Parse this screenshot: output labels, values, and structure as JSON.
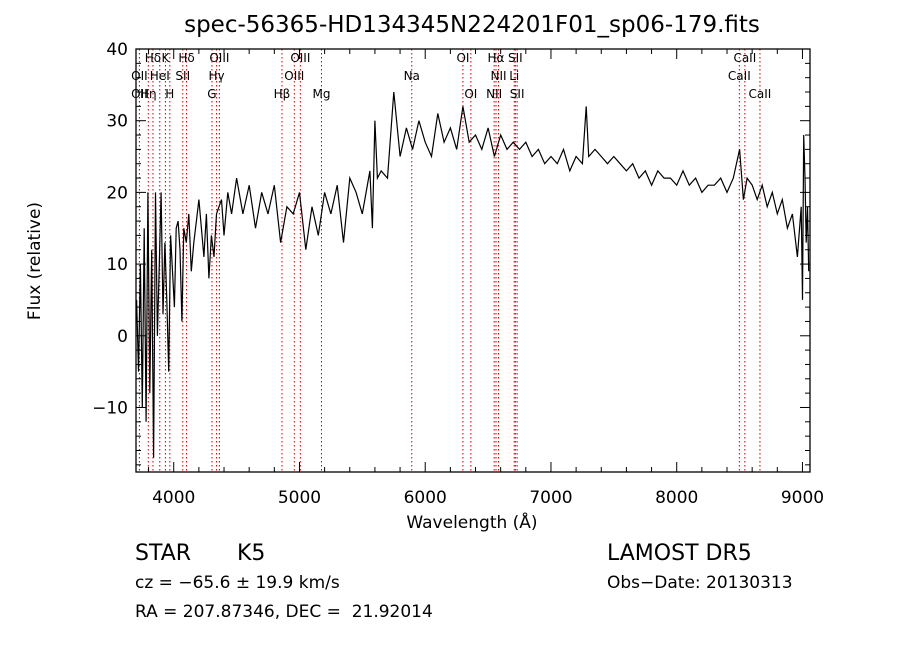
{
  "chart_data": {
    "type": "line",
    "title": "spec-56365-HD134345N224201F01_sp06-179.fits",
    "xlabel": "Wavelength (Å)",
    "ylabel": "Flux (relative)",
    "xlim": [
      3700,
      9060
    ],
    "ylim": [
      -19,
      40
    ],
    "xticks": [
      4000,
      5000,
      6000,
      7000,
      8000,
      9000
    ],
    "yticks": [
      -10,
      0,
      10,
      20,
      30,
      40
    ],
    "grid": false,
    "series": [
      {
        "points": [
          [
            3705,
            5
          ],
          [
            3720,
            -5
          ],
          [
            3735,
            10
          ],
          [
            3750,
            -10
          ],
          [
            3765,
            15
          ],
          [
            3780,
            -12
          ],
          [
            3795,
            20
          ],
          [
            3810,
            -8
          ],
          [
            3825,
            12
          ],
          [
            3840,
            -17
          ],
          [
            3855,
            20
          ],
          [
            3870,
            0
          ],
          [
            3885,
            10
          ],
          [
            3900,
            20
          ],
          [
            3915,
            3
          ],
          [
            3930,
            13
          ],
          [
            3945,
            5
          ],
          [
            3960,
            -5
          ],
          [
            3975,
            14
          ],
          [
            3990,
            9
          ],
          [
            4005,
            4
          ],
          [
            4020,
            15
          ],
          [
            4035,
            16
          ],
          [
            4050,
            12
          ],
          [
            4065,
            2
          ],
          [
            4080,
            15
          ],
          [
            4100,
            13
          ],
          [
            4120,
            17
          ],
          [
            4140,
            9
          ],
          [
            4160,
            13
          ],
          [
            4180,
            16
          ],
          [
            4200,
            19
          ],
          [
            4220,
            15
          ],
          [
            4240,
            11
          ],
          [
            4260,
            17
          ],
          [
            4280,
            8
          ],
          [
            4300,
            14
          ],
          [
            4320,
            11
          ],
          [
            4340,
            17
          ],
          [
            4360,
            18
          ],
          [
            4380,
            19
          ],
          [
            4400,
            14
          ],
          [
            4430,
            20
          ],
          [
            4460,
            17
          ],
          [
            4500,
            22
          ],
          [
            4550,
            17
          ],
          [
            4600,
            21
          ],
          [
            4650,
            15
          ],
          [
            4700,
            20
          ],
          [
            4750,
            17
          ],
          [
            4800,
            21
          ],
          [
            4850,
            13
          ],
          [
            4900,
            18
          ],
          [
            4950,
            17
          ],
          [
            5000,
            20
          ],
          [
            5050,
            12
          ],
          [
            5100,
            18
          ],
          [
            5150,
            14
          ],
          [
            5200,
            20
          ],
          [
            5250,
            17
          ],
          [
            5300,
            21
          ],
          [
            5350,
            13
          ],
          [
            5400,
            22
          ],
          [
            5450,
            20
          ],
          [
            5500,
            17
          ],
          [
            5560,
            23
          ],
          [
            5580,
            15
          ],
          [
            5600,
            30
          ],
          [
            5620,
            22
          ],
          [
            5650,
            23
          ],
          [
            5700,
            22
          ],
          [
            5750,
            34
          ],
          [
            5800,
            25
          ],
          [
            5850,
            29
          ],
          [
            5900,
            26
          ],
          [
            5950,
            30
          ],
          [
            6000,
            27
          ],
          [
            6050,
            25
          ],
          [
            6100,
            31
          ],
          [
            6150,
            27
          ],
          [
            6200,
            29
          ],
          [
            6250,
            26
          ],
          [
            6300,
            32
          ],
          [
            6350,
            27
          ],
          [
            6400,
            28
          ],
          [
            6450,
            26
          ],
          [
            6500,
            29
          ],
          [
            6550,
            25
          ],
          [
            6600,
            28
          ],
          [
            6650,
            26
          ],
          [
            6700,
            27
          ],
          [
            6750,
            26
          ],
          [
            6800,
            27
          ],
          [
            6850,
            25
          ],
          [
            6900,
            26
          ],
          [
            6950,
            24
          ],
          [
            7000,
            25
          ],
          [
            7050,
            24
          ],
          [
            7100,
            26
          ],
          [
            7150,
            23
          ],
          [
            7200,
            25
          ],
          [
            7250,
            24
          ],
          [
            7280,
            32
          ],
          [
            7300,
            25
          ],
          [
            7350,
            26
          ],
          [
            7400,
            25
          ],
          [
            7450,
            24
          ],
          [
            7500,
            25
          ],
          [
            7550,
            24
          ],
          [
            7600,
            23
          ],
          [
            7650,
            24
          ],
          [
            7700,
            22
          ],
          [
            7750,
            23
          ],
          [
            7800,
            21
          ],
          [
            7850,
            23
          ],
          [
            7900,
            22
          ],
          [
            7950,
            22
          ],
          [
            8000,
            21
          ],
          [
            8050,
            23
          ],
          [
            8100,
            21
          ],
          [
            8150,
            22
          ],
          [
            8200,
            20
          ],
          [
            8250,
            21
          ],
          [
            8300,
            21
          ],
          [
            8350,
            22
          ],
          [
            8400,
            20
          ],
          [
            8450,
            22
          ],
          [
            8500,
            26
          ],
          [
            8530,
            19
          ],
          [
            8560,
            22
          ],
          [
            8600,
            21
          ],
          [
            8640,
            19
          ],
          [
            8680,
            21
          ],
          [
            8720,
            18
          ],
          [
            8760,
            20
          ],
          [
            8800,
            17
          ],
          [
            8840,
            19
          ],
          [
            8880,
            15
          ],
          [
            8920,
            17
          ],
          [
            8960,
            11
          ],
          [
            8990,
            18
          ],
          [
            9000,
            5
          ],
          [
            9010,
            28
          ],
          [
            9020,
            22
          ],
          [
            9030,
            13
          ],
          [
            9040,
            18
          ],
          [
            9050,
            9
          ]
        ]
      }
    ],
    "lines": [
      {
        "x": 3727,
        "labels": [
          "OII"
        ]
      },
      {
        "x": 3798,
        "labels": [
          "Hη"
        ]
      },
      {
        "x": 3835,
        "labels": [
          "Hδ"
        ]
      },
      {
        "x": 3889,
        "labels": [
          "HeI"
        ]
      },
      {
        "x": 3934,
        "labels": [
          "K"
        ]
      },
      {
        "x": 3969,
        "labels": [
          "H"
        ]
      },
      {
        "x": 4072,
        "labels": [
          "SII"
        ]
      },
      {
        "x": 4102,
        "labels": [
          "Hδ"
        ]
      },
      {
        "x": 4304,
        "labels": [
          "G"
        ]
      },
      {
        "x": 4341,
        "labels": [
          "Hγ"
        ]
      },
      {
        "x": 4363,
        "labels": [
          "OIII"
        ]
      },
      {
        "x": 4861,
        "labels": [
          "Hβ"
        ]
      },
      {
        "x": 4959,
        "labels": [
          "OIII"
        ]
      },
      {
        "x": 5007,
        "labels": [
          "OIII"
        ]
      },
      {
        "x": 5175,
        "labels": [
          "Mg"
        ]
      },
      {
        "x": 5893,
        "labels": [
          "Na"
        ]
      },
      {
        "x": 6300,
        "labels": [
          "OI"
        ]
      },
      {
        "x": 6363,
        "labels": [
          "OI"
        ]
      },
      {
        "x": 6548,
        "labels": [
          "NII"
        ]
      },
      {
        "x": 6563,
        "labels": [
          "Hα"
        ]
      },
      {
        "x": 6583,
        "labels": [
          "NII"
        ]
      },
      {
        "x": 6708,
        "labels": [
          "Li"
        ]
      },
      {
        "x": 6717,
        "labels": [
          "SII"
        ]
      },
      {
        "x": 6731,
        "labels": [
          "SII"
        ]
      },
      {
        "x": 8498,
        "labels": [
          "CaII"
        ]
      },
      {
        "x": 8542,
        "labels": [
          "CaII"
        ]
      },
      {
        "x": 8662,
        "labels": [
          "CaII"
        ]
      }
    ],
    "line_labels": [
      {
        "text": "Hδ",
        "x": 3835,
        "row": 0
      },
      {
        "text": "K",
        "x": 3934,
        "row": 0
      },
      {
        "text": "Hδ",
        "x": 4102,
        "row": 0
      },
      {
        "text": "OIII",
        "x": 4363,
        "row": 0
      },
      {
        "text": "OIII",
        "x": 5007,
        "row": 0
      },
      {
        "text": "OI",
        "x": 6300,
        "row": 0
      },
      {
        "text": "Hα",
        "x": 6563,
        "row": 0
      },
      {
        "text": "SII",
        "x": 6717,
        "row": 0
      },
      {
        "text": "CaII",
        "x": 8542,
        "row": 0
      },
      {
        "text": "OII",
        "x": 3727,
        "row": 1
      },
      {
        "text": "HeI",
        "x": 3889,
        "row": 1
      },
      {
        "text": "SII",
        "x": 4072,
        "row": 1
      },
      {
        "text": "Hγ",
        "x": 4341,
        "row": 1
      },
      {
        "text": "OIII",
        "x": 4959,
        "row": 1
      },
      {
        "text": "Na",
        "x": 5893,
        "row": 1
      },
      {
        "text": "NII",
        "x": 6583,
        "row": 1
      },
      {
        "text": "Li",
        "x": 6708,
        "row": 1
      },
      {
        "text": "CaII",
        "x": 8498,
        "row": 1
      },
      {
        "text": "OII",
        "x": 3727,
        "row": 2
      },
      {
        "text": "Hη",
        "x": 3798,
        "row": 2
      },
      {
        "text": "H",
        "x": 3969,
        "row": 2
      },
      {
        "text": "G",
        "x": 4304,
        "row": 2
      },
      {
        "text": "Hβ",
        "x": 4861,
        "row": 2
      },
      {
        "text": "Mg",
        "x": 5175,
        "row": 2
      },
      {
        "text": "OI",
        "x": 6363,
        "row": 2
      },
      {
        "text": "NII",
        "x": 6548,
        "row": 2
      },
      {
        "text": "SII",
        "x": 6731,
        "row": 2
      },
      {
        "text": "CaII",
        "x": 8662,
        "row": 2
      }
    ],
    "colors": {
      "spectrum": "#000000",
      "lines": "#c00000"
    }
  },
  "info": {
    "object_class": "STAR",
    "subclass": "K5",
    "survey": "LAMOST DR5",
    "redshift": "cz = −65.6 ± 19.9 km/s",
    "obs_date": "Obs−Date: 20130313",
    "coords": "RA = 207.87346, DEC =  21.92014"
  }
}
